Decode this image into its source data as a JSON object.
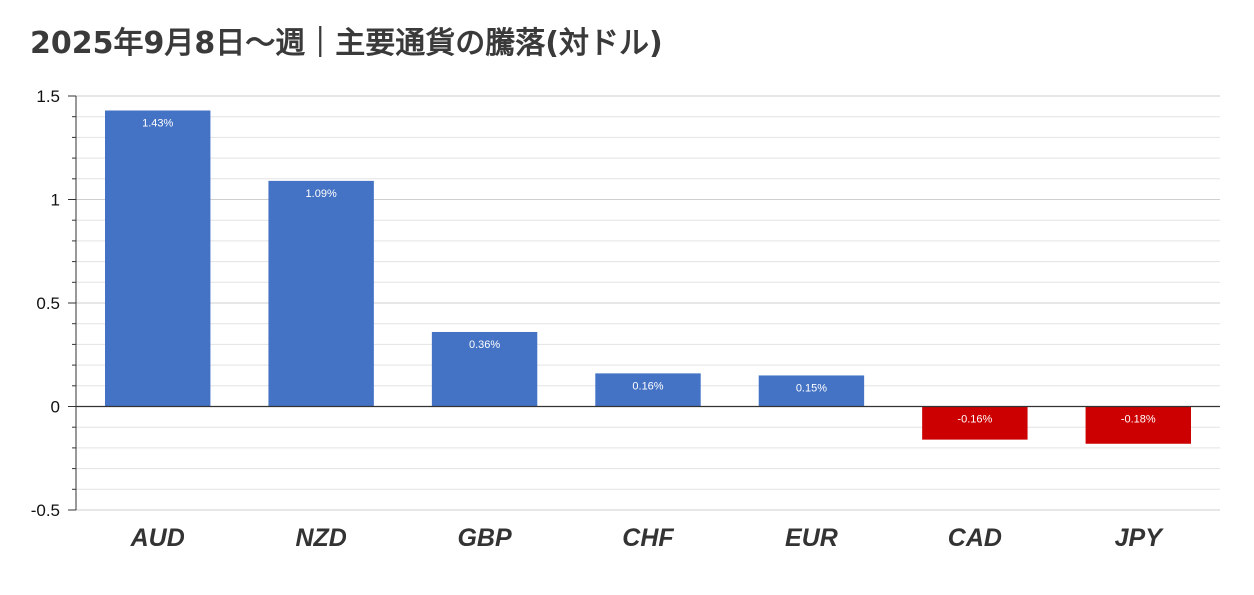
{
  "chart_data": {
    "type": "bar",
    "title": "2025年9月8日〜週｜主要通貨の騰落(対ドル)",
    "categories": [
      "AUD",
      "NZD",
      "GBP",
      "CHF",
      "EUR",
      "CAD",
      "JPY"
    ],
    "values": [
      1.43,
      1.09,
      0.36,
      0.16,
      0.15,
      -0.16,
      -0.18
    ],
    "data_labels": [
      "1.43%",
      "1.09%",
      "0.36%",
      "0.16%",
      "0.15%",
      "-0.16%",
      "-0.18%"
    ],
    "ylim": [
      -0.5,
      1.5
    ],
    "yticks": [
      -0.5,
      0,
      0.5,
      1,
      1.5
    ],
    "ytick_labels": [
      "-0.5",
      "0",
      "0.5",
      "1",
      "1.5"
    ],
    "minor_step": 0.1,
    "grid": true,
    "legend": "none",
    "xlabel": "",
    "ylabel": "",
    "colors": {
      "positive": "#4472c4",
      "negative": "#cc0000",
      "grid": "#e3e3e3",
      "axis": "#333333"
    }
  }
}
